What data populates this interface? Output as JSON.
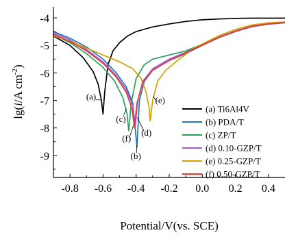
{
  "chart_data": {
    "type": "line",
    "title": "",
    "xlabel": "Potential/V(vs. SCE)",
    "ylabel_parts": [
      "lg(",
      "i",
      "/A cm",
      "-2",
      ")"
    ],
    "xlim": [
      -0.9,
      0.5
    ],
    "ylim": [
      -9.8,
      -3.6
    ],
    "x_ticks": [
      -0.8,
      -0.6,
      -0.4,
      -0.2,
      0.0,
      0.2,
      0.4
    ],
    "x_tick_labels": [
      "-0.8",
      "-0.6",
      "-0.4",
      "-0.2",
      "0.0",
      "0.2",
      "0.4"
    ],
    "y_ticks": [
      -9,
      -8,
      -7,
      -6,
      -5,
      -4
    ],
    "y_tick_labels": [
      "-9",
      "-8",
      "-7",
      "-6",
      "-5",
      "-4"
    ],
    "legend_position": "bottom-right",
    "series": [
      {
        "name": "(a) Ti6Al4V",
        "label": "(a)",
        "color": "#000000",
        "points": [
          [
            -0.9,
            -4.66
          ],
          [
            -0.8,
            -5.0
          ],
          [
            -0.72,
            -5.45
          ],
          [
            -0.66,
            -5.95
          ],
          [
            -0.63,
            -6.4
          ],
          [
            -0.61,
            -7.0
          ],
          [
            -0.6,
            -7.5
          ],
          [
            -0.59,
            -6.7
          ],
          [
            -0.57,
            -5.7
          ],
          [
            -0.54,
            -5.2
          ],
          [
            -0.5,
            -4.9
          ],
          [
            -0.45,
            -4.65
          ],
          [
            -0.4,
            -4.5
          ],
          [
            -0.3,
            -4.33
          ],
          [
            -0.2,
            -4.22
          ],
          [
            -0.1,
            -4.13
          ],
          [
            0.0,
            -4.07
          ],
          [
            0.1,
            -4.04
          ],
          [
            0.2,
            -4.02
          ],
          [
            0.3,
            -4.01
          ],
          [
            0.4,
            -4.01
          ],
          [
            0.5,
            -4.01
          ]
        ]
      },
      {
        "name": "(b) PDA/T",
        "label": "(b)",
        "color": "#1f77b4",
        "points": [
          [
            -0.9,
            -4.5
          ],
          [
            -0.8,
            -4.74
          ],
          [
            -0.7,
            -5.06
          ],
          [
            -0.6,
            -5.5
          ],
          [
            -0.52,
            -6.0
          ],
          [
            -0.46,
            -6.5
          ],
          [
            -0.42,
            -7.1
          ],
          [
            -0.395,
            -8.7
          ],
          [
            -0.38,
            -7.0
          ],
          [
            -0.35,
            -6.3
          ],
          [
            -0.3,
            -5.9
          ],
          [
            -0.2,
            -5.55
          ],
          [
            -0.1,
            -5.3
          ],
          [
            0.0,
            -5.0
          ],
          [
            0.1,
            -4.72
          ],
          [
            0.2,
            -4.5
          ],
          [
            0.3,
            -4.32
          ],
          [
            0.4,
            -4.23
          ],
          [
            0.5,
            -4.18
          ]
        ]
      },
      {
        "name": "(c) ZP/T",
        "label": "(c)",
        "color": "#2ca05a",
        "points": [
          [
            -0.9,
            -4.62
          ],
          [
            -0.8,
            -4.9
          ],
          [
            -0.7,
            -5.3
          ],
          [
            -0.6,
            -5.8
          ],
          [
            -0.53,
            -6.3
          ],
          [
            -0.48,
            -6.9
          ],
          [
            -0.455,
            -7.5
          ],
          [
            -0.445,
            -8.1
          ],
          [
            -0.43,
            -7.1
          ],
          [
            -0.4,
            -6.2
          ],
          [
            -0.35,
            -5.7
          ],
          [
            -0.3,
            -5.5
          ],
          [
            -0.2,
            -5.35
          ],
          [
            -0.1,
            -5.2
          ],
          [
            0.0,
            -4.96
          ],
          [
            0.1,
            -4.7
          ],
          [
            0.2,
            -4.48
          ],
          [
            0.3,
            -4.3
          ],
          [
            0.4,
            -4.2
          ],
          [
            0.5,
            -4.15
          ]
        ]
      },
      {
        "name": "(d) 0.10-GZP/T",
        "label": "(d)",
        "color": "#a05ce0",
        "points": [
          [
            -0.9,
            -4.55
          ],
          [
            -0.8,
            -4.8
          ],
          [
            -0.7,
            -5.15
          ],
          [
            -0.6,
            -5.6
          ],
          [
            -0.52,
            -6.1
          ],
          [
            -0.46,
            -6.6
          ],
          [
            -0.42,
            -7.2
          ],
          [
            -0.405,
            -7.9
          ],
          [
            -0.39,
            -7.0
          ],
          [
            -0.36,
            -6.3
          ],
          [
            -0.3,
            -5.85
          ],
          [
            -0.2,
            -5.5
          ],
          [
            -0.1,
            -5.25
          ],
          [
            0.0,
            -4.98
          ],
          [
            0.1,
            -4.7
          ],
          [
            0.2,
            -4.48
          ],
          [
            0.3,
            -4.3
          ],
          [
            0.4,
            -4.21
          ],
          [
            0.5,
            -4.16
          ]
        ]
      },
      {
        "name": "(e) 0.25-GZP/T",
        "label": "(e)",
        "color": "#d4a000",
        "points": [
          [
            -0.9,
            -4.65
          ],
          [
            -0.8,
            -4.85
          ],
          [
            -0.7,
            -5.1
          ],
          [
            -0.6,
            -5.35
          ],
          [
            -0.5,
            -5.6
          ],
          [
            -0.42,
            -5.85
          ],
          [
            -0.37,
            -6.2
          ],
          [
            -0.34,
            -6.7
          ],
          [
            -0.32,
            -7.3
          ],
          [
            -0.315,
            -7.75
          ],
          [
            -0.3,
            -7.0
          ],
          [
            -0.27,
            -6.3
          ],
          [
            -0.22,
            -5.9
          ],
          [
            -0.15,
            -5.55
          ],
          [
            -0.05,
            -5.1
          ],
          [
            0.0,
            -4.95
          ],
          [
            0.1,
            -4.65
          ],
          [
            0.2,
            -4.42
          ],
          [
            0.3,
            -4.26
          ],
          [
            0.4,
            -4.18
          ],
          [
            0.5,
            -4.15
          ]
        ]
      },
      {
        "name": "(f) 0.50-GZP/T",
        "label": "(f)",
        "color": "#e8382e",
        "points": [
          [
            -0.9,
            -4.6
          ],
          [
            -0.8,
            -4.86
          ],
          [
            -0.7,
            -5.2
          ],
          [
            -0.6,
            -5.65
          ],
          [
            -0.52,
            -6.15
          ],
          [
            -0.46,
            -6.7
          ],
          [
            -0.425,
            -7.3
          ],
          [
            -0.41,
            -8.0
          ],
          [
            -0.395,
            -7.1
          ],
          [
            -0.36,
            -6.35
          ],
          [
            -0.3,
            -5.9
          ],
          [
            -0.2,
            -5.55
          ],
          [
            -0.1,
            -5.27
          ],
          [
            0.0,
            -4.99
          ],
          [
            0.1,
            -4.71
          ],
          [
            0.2,
            -4.49
          ],
          [
            0.3,
            -4.31
          ],
          [
            0.4,
            -4.22
          ],
          [
            0.5,
            -4.17
          ]
        ]
      }
    ]
  }
}
